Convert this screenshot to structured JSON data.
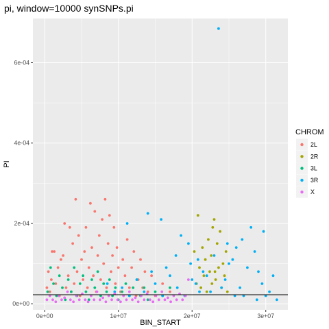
{
  "chart_data": {
    "type": "scatter",
    "title": "pi, window=10000 synSNPs.pi",
    "xlabel": "BIN_START",
    "ylabel": "PI",
    "xlim": [
      -1600000,
      33000000
    ],
    "ylim": [
      -1.5e-05,
      0.00071
    ],
    "x_ticks": [
      0,
      10000000,
      20000000,
      30000000
    ],
    "x_tick_labels": [
      "0e+00",
      "1e+07",
      "2e+07",
      "3e+07"
    ],
    "y_ticks": [
      0,
      0.0002,
      0.0004,
      0.0006
    ],
    "y_tick_labels": [
      "0e+00",
      "2e-04",
      "4e-04",
      "6e-04"
    ],
    "hline": 2.25e-05,
    "grid": true,
    "legend_position": "right",
    "legend_title": "CHROM",
    "series": [
      {
        "name": "2L",
        "color": "#F8766D",
        "points": [
          [
            300000,
            4e-05
          ],
          [
            500000,
            8e-05
          ],
          [
            700000,
            3e-05
          ],
          [
            900000,
            6e-05
          ],
          [
            1000000,
            0.00013
          ],
          [
            1300000,
            0.00013
          ],
          [
            1500000,
            5e-05
          ],
          [
            1800000,
            9e-05
          ],
          [
            2000000,
            2e-05
          ],
          [
            2200000,
            0.00011
          ],
          [
            2500000,
            0.00012
          ],
          [
            2700000,
            0.0002
          ],
          [
            2900000,
            4e-05
          ],
          [
            3200000,
            7e-05
          ],
          [
            3400000,
            0.00019
          ],
          [
            3600000,
            3e-05
          ],
          [
            3800000,
            0.00015
          ],
          [
            4000000,
            5e-05
          ],
          [
            4200000,
            0.00026
          ],
          [
            4400000,
            8e-05
          ],
          [
            4600000,
            0.00017
          ],
          [
            4800000,
            2e-05
          ],
          [
            5000000,
            0.00011
          ],
          [
            5200000,
            6e-05
          ],
          [
            5400000,
            0.00013
          ],
          [
            5600000,
            0.00019
          ],
          [
            5800000,
            4e-05
          ],
          [
            6000000,
            9e-05
          ],
          [
            6200000,
            0.00025
          ],
          [
            6400000,
            0.00014
          ],
          [
            6600000,
            7e-05
          ],
          [
            6800000,
            0.00023
          ],
          [
            7000000,
            3e-05
          ],
          [
            7200000,
            0.00012
          ],
          [
            7400000,
            0.00017
          ],
          [
            7600000,
            6e-05
          ],
          [
            7800000,
            0.00021
          ],
          [
            8000000,
            0.0001
          ],
          [
            8200000,
            0.00026
          ],
          [
            8400000,
            4e-05
          ],
          [
            8600000,
            0.00015
          ],
          [
            8800000,
            0.00022
          ],
          [
            9000000,
            8e-05
          ],
          [
            9200000,
            0.00012
          ],
          [
            9400000,
            0.00019
          ],
          [
            9600000,
            5e-05
          ],
          [
            9800000,
            0.00014
          ],
          [
            10000000,
            9e-05
          ],
          [
            10300000,
            3e-05
          ],
          [
            10600000,
            0.00011
          ],
          [
            10900000,
            7e-05
          ],
          [
            11200000,
            0.00016
          ],
          [
            11500000,
            4e-05
          ],
          [
            11800000,
            9e-05
          ],
          [
            12100000,
            0.00013
          ],
          [
            12400000,
            2e-05
          ],
          [
            12700000,
            6e-05
          ],
          [
            13000000,
            0.00011
          ],
          [
            13300000,
            4e-05
          ],
          [
            13600000,
            8e-05
          ],
          [
            14000000,
            3e-05
          ],
          [
            14500000,
            7e-05
          ],
          [
            15000000,
            2e-05
          ],
          [
            16000000,
            5e-05
          ],
          [
            17000000,
            3e-05
          ]
        ]
      },
      {
        "name": "2R",
        "color": "#A3A500",
        "points": [
          [
            20300000,
            0.00013
          ],
          [
            20600000,
            5e-05
          ],
          [
            20800000,
            0.00022
          ],
          [
            21000000,
            9e-05
          ],
          [
            21200000,
            4e-05
          ],
          [
            21400000,
            0.00014
          ],
          [
            21600000,
            7e-05
          ],
          [
            21800000,
            0.00011
          ],
          [
            22000000,
            3e-05
          ],
          [
            22200000,
            0.00016
          ],
          [
            22400000,
            8e-05
          ],
          [
            22600000,
            0.00012
          ],
          [
            22800000,
            0.00019
          ],
          [
            23000000,
            0.00021
          ],
          [
            23200000,
            6e-05
          ],
          [
            23400000,
            0.00015
          ],
          [
            23600000,
            9e-05
          ],
          [
            23800000,
            0.00018
          ],
          [
            24000000,
            4e-05
          ],
          [
            24200000,
            0.0001
          ],
          [
            24400000,
            7e-05
          ],
          [
            24600000,
            0.00013
          ],
          [
            24800000,
            3e-05
          ],
          [
            23100000,
            8e-05
          ],
          [
            22700000,
            5e-05
          ]
        ]
      },
      {
        "name": "3L",
        "color": "#00BF7D",
        "points": [
          [
            400000,
            3e-05
          ],
          [
            800000,
            9e-05
          ],
          [
            1200000,
            5e-05
          ],
          [
            1600000,
            2e-05
          ],
          [
            2000000,
            7e-05
          ],
          [
            2400000,
            4e-05
          ],
          [
            2800000,
            1e-05
          ],
          [
            3200000,
            6e-05
          ],
          [
            3600000,
            3e-05
          ],
          [
            4000000,
            9e-05
          ],
          [
            4400000,
            2e-05
          ],
          [
            4800000,
            5e-05
          ],
          [
            5200000,
            7e-05
          ],
          [
            5600000,
            3e-05
          ],
          [
            6000000,
            1e-05
          ],
          [
            6400000,
            6e-05
          ],
          [
            6800000,
            4e-05
          ],
          [
            7200000,
            8e-05
          ],
          [
            7600000,
            2e-05
          ],
          [
            8000000,
            5e-05
          ],
          [
            8400000,
            3e-05
          ],
          [
            8800000,
            6e-05
          ],
          [
            9200000,
            2e-05
          ],
          [
            9600000,
            4e-05
          ],
          [
            10000000,
            1e-05
          ],
          [
            10500000,
            3e-05
          ],
          [
            11000000,
            5e-05
          ],
          [
            11500000,
            2e-05
          ],
          [
            12000000,
            4e-05
          ],
          [
            12500000,
            6e-05
          ],
          [
            13000000,
            2e-05
          ],
          [
            13500000,
            4e-05
          ],
          [
            14000000,
            1e-05
          ],
          [
            15000000,
            3e-05
          ],
          [
            16000000,
            2e-05
          ],
          [
            17000000,
            4e-05
          ]
        ]
      },
      {
        "name": "3R",
        "color": "#00B0F6",
        "points": [
          [
            23600000,
            0.000685
          ],
          [
            14000000,
            0.000225
          ],
          [
            11200000,
            0.0002
          ],
          [
            15800000,
            0.00021
          ],
          [
            29700000,
            0.00018
          ],
          [
            28000000,
            0.00019
          ],
          [
            18500000,
            0.00017
          ],
          [
            19500000,
            0.00015
          ],
          [
            17800000,
            0.00012
          ],
          [
            16500000,
            9e-05
          ],
          [
            20500000,
            5e-05
          ],
          [
            21500000,
            8e-05
          ],
          [
            22500000,
            3e-05
          ],
          [
            24500000,
            6e-05
          ],
          [
            25500000,
            0.00011
          ],
          [
            26500000,
            4e-05
          ],
          [
            27500000,
            9e-05
          ],
          [
            28500000,
            0.00013
          ],
          [
            29500000,
            5e-05
          ],
          [
            30500000,
            3e-05
          ],
          [
            31000000,
            7e-05
          ],
          [
            26000000,
            0.00014
          ],
          [
            27000000,
            2e-05
          ],
          [
            25000000,
            0.0001
          ],
          [
            24000000,
            4e-05
          ],
          [
            23000000,
            0.00012
          ],
          [
            22000000,
            7e-05
          ],
          [
            21000000,
            3e-05
          ],
          [
            20000000,
            6e-05
          ],
          [
            19000000,
            2e-05
          ],
          [
            18000000,
            4e-05
          ],
          [
            17000000,
            7e-05
          ],
          [
            16000000,
            2e-05
          ],
          [
            15000000,
            5e-05
          ],
          [
            14500000,
            8e-05
          ],
          [
            13500000,
            3e-05
          ],
          [
            12500000,
            6e-05
          ],
          [
            11500000,
            2e-05
          ],
          [
            10500000,
            4e-05
          ],
          [
            9500000,
            3e-05
          ],
          [
            8500000,
            5e-05
          ],
          [
            28800000,
            1e-05
          ],
          [
            30000000,
            2e-05
          ],
          [
            29000000,
            8e-05
          ],
          [
            26800000,
            0.00016
          ],
          [
            25800000,
            2e-05
          ],
          [
            24800000,
            0.00015
          ],
          [
            31500000,
            1e-05
          ],
          [
            20800000,
            0.00011
          ],
          [
            19800000,
            0.0001
          ]
        ]
      },
      {
        "name": "X",
        "color": "#E76BF3",
        "points": [
          [
            300000,
            1e-05
          ],
          [
            700000,
            2e-05
          ],
          [
            1100000,
            1e-05
          ],
          [
            1500000,
            5e-06
          ],
          [
            1900000,
            2e-05
          ],
          [
            2300000,
            1e-05
          ],
          [
            2700000,
            1.5e-05
          ],
          [
            3100000,
            3e-05
          ],
          [
            3500000,
            1e-05
          ],
          [
            3900000,
            5e-06
          ],
          [
            4300000,
            2e-05
          ],
          [
            4700000,
            1e-05
          ],
          [
            5100000,
            2.5e-05
          ],
          [
            5500000,
            1e-05
          ],
          [
            5900000,
            5e-06
          ],
          [
            6300000,
            2e-05
          ],
          [
            6700000,
            1e-05
          ],
          [
            7100000,
            3e-05
          ],
          [
            7500000,
            1e-05
          ],
          [
            7900000,
            1.5e-05
          ],
          [
            8300000,
            5e-06
          ],
          [
            8700000,
            2e-05
          ],
          [
            9100000,
            1e-05
          ],
          [
            9500000,
            2.5e-05
          ],
          [
            9900000,
            1e-05
          ],
          [
            10300000,
            5e-06
          ],
          [
            10700000,
            2e-05
          ],
          [
            11100000,
            1e-05
          ],
          [
            11500000,
            3e-05
          ],
          [
            11900000,
            1e-05
          ],
          [
            12300000,
            1.5e-05
          ],
          [
            12700000,
            5e-06
          ],
          [
            13100000,
            2e-05
          ],
          [
            13500000,
            1e-05
          ],
          [
            13900000,
            2.5e-05
          ],
          [
            14300000,
            1e-05
          ],
          [
            14700000,
            5e-06
          ],
          [
            15100000,
            2e-05
          ],
          [
            15500000,
            1e-05
          ],
          [
            15900000,
            3e-05
          ],
          [
            16300000,
            1e-05
          ],
          [
            16700000,
            1.5e-05
          ],
          [
            17100000,
            5e-06
          ],
          [
            17500000,
            2e-05
          ],
          [
            17900000,
            1e-05
          ],
          [
            18300000,
            2.5e-05
          ],
          [
            18700000,
            1e-05
          ],
          [
            19100000,
            2e-05
          ],
          [
            19500000,
            6e-05
          ]
        ]
      }
    ]
  }
}
